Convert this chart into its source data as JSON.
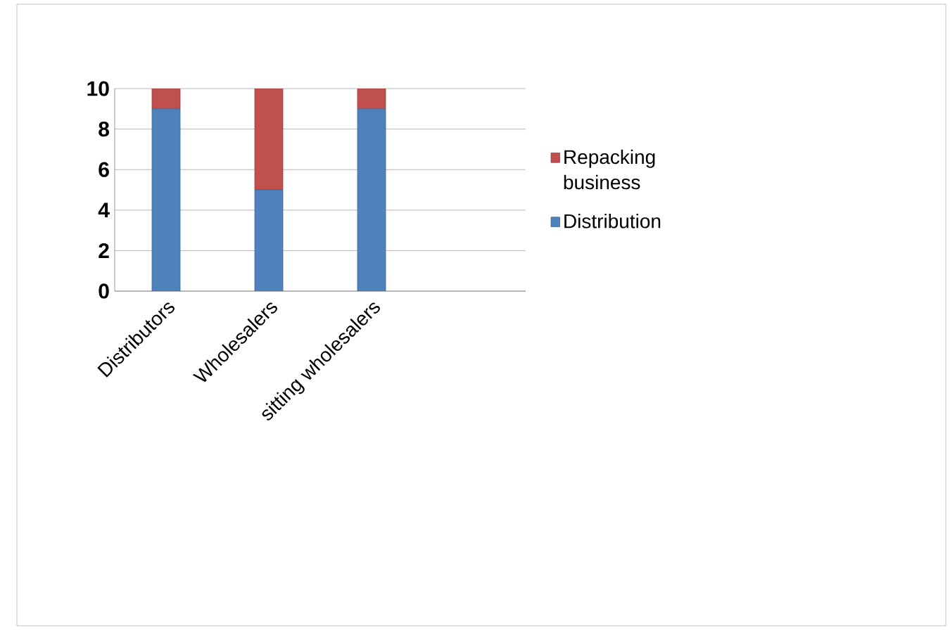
{
  "chart_data": {
    "type": "bar",
    "stacked": true,
    "categories": [
      "Distributors",
      "Wholesalers",
      "sitting wholesalers",
      null
    ],
    "series": [
      {
        "name": "Distribution",
        "color": "#4f81bd",
        "values": [
          9,
          5,
          9,
          null
        ]
      },
      {
        "name": "Repacking business",
        "color": "#c0504d",
        "values": [
          1,
          5,
          1,
          null
        ]
      }
    ],
    "ylim": [
      0,
      10
    ],
    "yticks": [
      0,
      2,
      4,
      6,
      8,
      10
    ],
    "grid": "y",
    "legend": "right"
  }
}
